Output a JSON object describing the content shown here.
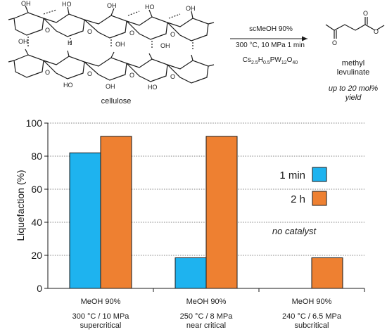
{
  "scheme": {
    "substrate_label": "cellulose",
    "arrow_conditions": [
      "scMeOH 90%",
      "300 °C, 10 MPa 1 min"
    ],
    "catalyst": {
      "base": "Cs",
      "parts": [
        [
          "Cs",
          "2.5"
        ],
        [
          "H",
          "0.5"
        ],
        [
          "PW",
          "12"
        ],
        [
          "O",
          "40"
        ]
      ]
    },
    "product_name_line1": "methyl",
    "product_name_line2": "levulinate",
    "yield_line1": "up to 20 mol%",
    "yield_line2": "yield",
    "atom_labels": {
      "oh": "OH",
      "ho": "HO",
      "o": "O",
      "h": "H"
    }
  },
  "chart_data": {
    "type": "bar",
    "ylabel": "Liquefaction (%)",
    "ylim": [
      0,
      100
    ],
    "yticks": [
      0,
      20,
      40,
      60,
      80,
      100
    ],
    "grid": true,
    "categories": [
      {
        "line1": "MeOH 90%",
        "line2": "300 °C / 10 MPa",
        "line3": "supercritical"
      },
      {
        "line1": "MeOH 90%",
        "line2": "250 °C / 8 MPa",
        "line3": "near critical"
      },
      {
        "line1": "MeOH 90%",
        "line2": "240 °C / 6.5 MPa",
        "line3": "subcritical"
      }
    ],
    "series": [
      {
        "name": "1 min",
        "color": "#1eb3ef",
        "values": [
          82,
          18.5,
          null
        ]
      },
      {
        "name": "2 h",
        "color": "#ee8031",
        "values": [
          92,
          92,
          18.5
        ]
      }
    ],
    "legend_position": "right",
    "annotation": "no catalyst"
  }
}
